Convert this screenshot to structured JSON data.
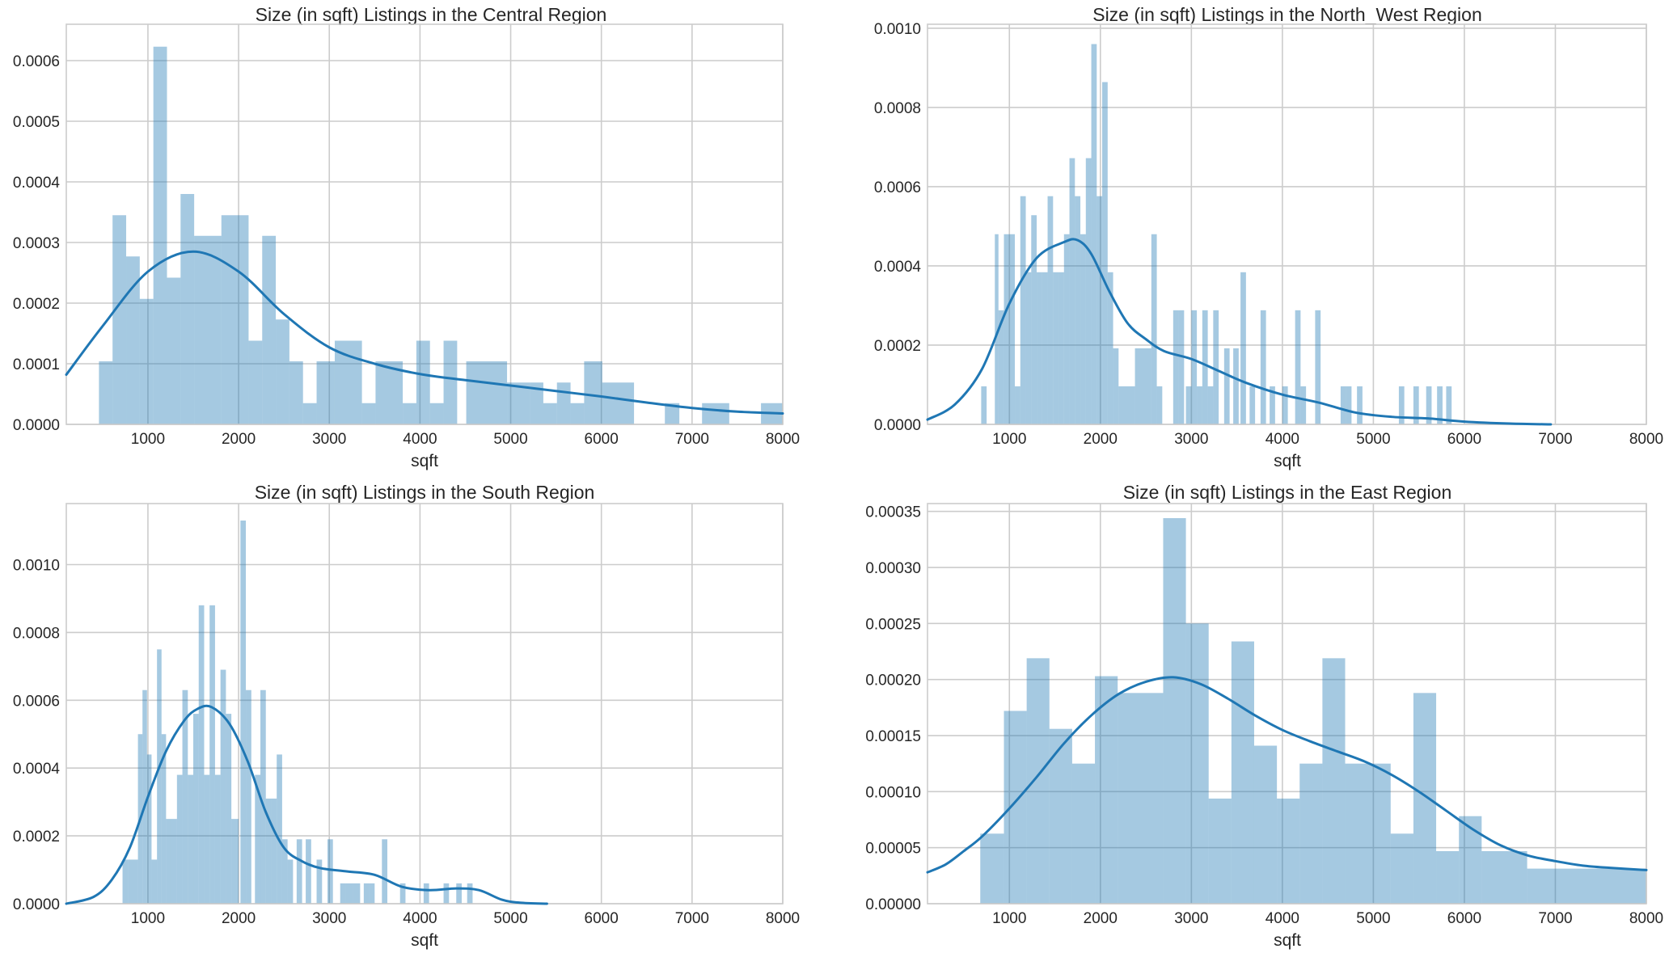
{
  "chart_data": [
    {
      "type": "bar",
      "title": "Size (in sqft) Listings in the Central Region",
      "xlabel": "sqft",
      "xlim": [
        100,
        8000
      ],
      "ylim": [
        0,
        0.00066
      ],
      "xticks": [
        1000,
        2000,
        3000,
        4000,
        5000,
        6000,
        7000,
        8000
      ],
      "xtick_labels": [
        "1000",
        "2000",
        "3000",
        "4000",
        "5000",
        "6000",
        "7000",
        "8000"
      ],
      "yticks": [
        0,
        0.0001,
        0.0002,
        0.0003,
        0.0004,
        0.0005,
        0.0006
      ],
      "ytick_labels": [
        "0.0000",
        "0.0001",
        "0.0002",
        "0.0003",
        "0.0004",
        "0.0005",
        "0.0006"
      ],
      "grid": true,
      "bins": [
        [
          460,
          610,
          0.000104
        ],
        [
          610,
          760,
          0.000345
        ],
        [
          760,
          910,
          0.000277
        ],
        [
          910,
          1060,
          0.000207
        ],
        [
          1060,
          1210,
          0.000623
        ],
        [
          1210,
          1360,
          0.000242
        ],
        [
          1360,
          1510,
          0.00038
        ],
        [
          1510,
          1810,
          0.000311
        ],
        [
          1810,
          2110,
          0.000345
        ],
        [
          2110,
          2260,
          0.000138
        ],
        [
          2260,
          2410,
          0.000311
        ],
        [
          2410,
          2560,
          0.000173
        ],
        [
          2560,
          2710,
          0.000104
        ],
        [
          2710,
          2860,
          3.5e-05
        ],
        [
          2860,
          3060,
          0.000104
        ],
        [
          3060,
          3360,
          0.000138
        ],
        [
          3360,
          3510,
          3.5e-05
        ],
        [
          3510,
          3810,
          0.000104
        ],
        [
          3810,
          3960,
          3.5e-05
        ],
        [
          3960,
          4110,
          0.000138
        ],
        [
          4110,
          4260,
          3.5e-05
        ],
        [
          4260,
          4410,
          0.000138
        ],
        [
          4410,
          4510,
          0.0
        ],
        [
          4510,
          4960,
          0.000104
        ],
        [
          4960,
          5210,
          6.9e-05
        ],
        [
          5210,
          5360,
          6.9e-05
        ],
        [
          5360,
          5510,
          3.5e-05
        ],
        [
          5510,
          5660,
          6.9e-05
        ],
        [
          5660,
          5810,
          3.5e-05
        ],
        [
          5810,
          6010,
          0.000104
        ],
        [
          6010,
          6360,
          6.9e-05
        ],
        [
          6700,
          6860,
          3.5e-05
        ],
        [
          7110,
          7410,
          3.5e-05
        ],
        [
          7760,
          8000,
          3.5e-05
        ]
      ],
      "kde": [
        [
          100,
          8.2e-05
        ],
        [
          500,
          0.000162
        ],
        [
          1000,
          0.000252
        ],
        [
          1500,
          0.000285
        ],
        [
          2000,
          0.000252
        ],
        [
          2500,
          0.000182
        ],
        [
          3000,
          0.000127
        ],
        [
          3500,
          0.0001
        ],
        [
          4000,
          8.3e-05
        ],
        [
          4500,
          7.3e-05
        ],
        [
          5000,
          6.4e-05
        ],
        [
          5500,
          5.5e-05
        ],
        [
          6000,
          4.6e-05
        ],
        [
          6500,
          3.6e-05
        ],
        [
          7000,
          2.7e-05
        ],
        [
          7500,
          2.1e-05
        ],
        [
          8000,
          1.8e-05
        ]
      ]
    },
    {
      "type": "bar",
      "title": "Size (in sqft) Listings in the North_West Region",
      "xlabel": "sqft",
      "xlim": [
        100,
        8000
      ],
      "ylim": [
        0,
        0.00101
      ],
      "xticks": [
        1000,
        2000,
        3000,
        4000,
        5000,
        6000,
        7000,
        8000
      ],
      "xtick_labels": [
        "1000",
        "2000",
        "3000",
        "4000",
        "5000",
        "6000",
        "7000",
        "8000"
      ],
      "yticks": [
        0,
        0.0002,
        0.0004,
        0.0006,
        0.0008,
        0.001
      ],
      "ytick_labels": [
        "0.0000",
        "0.0002",
        "0.0004",
        "0.0006",
        "0.0008",
        "0.0010"
      ],
      "grid": true,
      "bins": [
        [
          690,
          750,
          9.6e-05
        ],
        [
          840,
          880,
          0.00048
        ],
        [
          880,
          940,
          0.000288
        ],
        [
          940,
          1000,
          0.00048
        ],
        [
          1000,
          1060,
          0.00048
        ],
        [
          1060,
          1120,
          9.6e-05
        ],
        [
          1120,
          1180,
          0.000576
        ],
        [
          1180,
          1240,
          0.000384
        ],
        [
          1240,
          1300,
          0.000528
        ],
        [
          1300,
          1360,
          0.000384
        ],
        [
          1360,
          1420,
          0.000384
        ],
        [
          1420,
          1480,
          0.000576
        ],
        [
          1480,
          1540,
          0.000384
        ],
        [
          1540,
          1600,
          0.000384
        ],
        [
          1600,
          1660,
          0.00048
        ],
        [
          1660,
          1720,
          0.000672
        ],
        [
          1720,
          1780,
          0.000576
        ],
        [
          1780,
          1840,
          0.00048
        ],
        [
          1840,
          1900,
          0.000672
        ],
        [
          1900,
          1960,
          0.00096
        ],
        [
          1960,
          2020,
          0.000576
        ],
        [
          2020,
          2080,
          0.000864
        ],
        [
          2080,
          2140,
          0.000384
        ],
        [
          2140,
          2200,
          0.000192
        ],
        [
          2200,
          2380,
          9.6e-05
        ],
        [
          2380,
          2560,
          0.000192
        ],
        [
          2560,
          2620,
          0.00048
        ],
        [
          2620,
          2680,
          9.6e-05
        ],
        [
          2800,
          2860,
          0.000288
        ],
        [
          2860,
          2920,
          0.000288
        ],
        [
          2940,
          3000,
          9.6e-05
        ],
        [
          3000,
          3060,
          0.000288
        ],
        [
          3060,
          3120,
          9.6e-05
        ],
        [
          3120,
          3180,
          0.000288
        ],
        [
          3180,
          3240,
          9.6e-05
        ],
        [
          3240,
          3300,
          0.000288
        ],
        [
          3360,
          3420,
          0.000192
        ],
        [
          3460,
          3520,
          0.000192
        ],
        [
          3540,
          3600,
          0.000384
        ],
        [
          3640,
          3700,
          9.6e-05
        ],
        [
          3760,
          3820,
          0.000288
        ],
        [
          3860,
          3920,
          9.6e-05
        ],
        [
          4000,
          4060,
          9.6e-05
        ],
        [
          4140,
          4200,
          0.000288
        ],
        [
          4200,
          4260,
          9.6e-05
        ],
        [
          4360,
          4420,
          0.000288
        ],
        [
          4640,
          4700,
          9.6e-05
        ],
        [
          4700,
          4760,
          9.6e-05
        ],
        [
          4820,
          4880,
          9.6e-05
        ],
        [
          5280,
          5340,
          9.6e-05
        ],
        [
          5440,
          5500,
          9.6e-05
        ],
        [
          5580,
          5640,
          9.6e-05
        ],
        [
          5700,
          5760,
          9.6e-05
        ],
        [
          5800,
          5860,
          9.6e-05
        ]
      ],
      "kde": [
        [
          100,
          1.2e-05
        ],
        [
          400,
          5e-05
        ],
        [
          700,
          0.00014
        ],
        [
          1000,
          0.000305
        ],
        [
          1300,
          0.00042
        ],
        [
          1600,
          0.00046
        ],
        [
          1750,
          0.000465
        ],
        [
          1900,
          0.00043
        ],
        [
          2100,
          0.000335
        ],
        [
          2300,
          0.000255
        ],
        [
          2500,
          0.000215
        ],
        [
          2700,
          0.000185
        ],
        [
          3000,
          0.000165
        ],
        [
          3300,
          0.000135
        ],
        [
          3600,
          0.000105
        ],
        [
          4000,
          7.5e-05
        ],
        [
          4400,
          5.5e-05
        ],
        [
          4800,
          3e-05
        ],
        [
          5200,
          1.9e-05
        ],
        [
          5600,
          1.5e-05
        ],
        [
          6000,
          7e-06
        ],
        [
          6500,
          2e-06
        ],
        [
          6950,
          0.0
        ]
      ]
    },
    {
      "type": "bar",
      "title": "Size (in sqft) Listings in the South Region",
      "xlabel": "sqft",
      "xlim": [
        100,
        8000
      ],
      "ylim": [
        0,
        0.00118
      ],
      "xticks": [
        1000,
        2000,
        3000,
        4000,
        5000,
        6000,
        7000,
        8000
      ],
      "xtick_labels": [
        "1000",
        "2000",
        "3000",
        "4000",
        "5000",
        "6000",
        "7000",
        "8000"
      ],
      "yticks": [
        0,
        0.0002,
        0.0004,
        0.0006,
        0.0008,
        0.001
      ],
      "ytick_labels": [
        "0.0000",
        "0.0002",
        "0.0004",
        "0.0006",
        "0.0008",
        "0.0010"
      ],
      "grid": true,
      "bins": [
        [
          720,
          780,
          0.00013
        ],
        [
          780,
          840,
          0.00013
        ],
        [
          840,
          890,
          0.00013
        ],
        [
          890,
          940,
          0.0005
        ],
        [
          940,
          990,
          0.00063
        ],
        [
          990,
          1040,
          0.00044
        ],
        [
          1040,
          1100,
          0.00013
        ],
        [
          1100,
          1150,
          0.00075
        ],
        [
          1150,
          1200,
          0.0005
        ],
        [
          1200,
          1250,
          0.00025
        ],
        [
          1250,
          1320,
          0.00025
        ],
        [
          1320,
          1380,
          0.00038
        ],
        [
          1380,
          1440,
          0.00063
        ],
        [
          1440,
          1500,
          0.00038
        ],
        [
          1500,
          1560,
          0.00056
        ],
        [
          1560,
          1620,
          0.00088
        ],
        [
          1620,
          1680,
          0.00038
        ],
        [
          1680,
          1740,
          0.00088
        ],
        [
          1740,
          1800,
          0.00038
        ],
        [
          1800,
          1860,
          0.00069
        ],
        [
          1860,
          1920,
          0.00056
        ],
        [
          1920,
          2000,
          0.00025
        ],
        [
          2020,
          2080,
          0.00113
        ],
        [
          2080,
          2140,
          0.00063
        ],
        [
          2180,
          2240,
          0.00038
        ],
        [
          2240,
          2300,
          0.00063
        ],
        [
          2300,
          2360,
          0.00031
        ],
        [
          2360,
          2420,
          0.00031
        ],
        [
          2420,
          2480,
          0.00044
        ],
        [
          2480,
          2540,
          0.00019
        ],
        [
          2540,
          2600,
          0.00013
        ],
        [
          2640,
          2700,
          0.00019
        ],
        [
          2740,
          2800,
          0.00019
        ],
        [
          2860,
          2920,
          0.00013
        ],
        [
          2980,
          3040,
          0.00019
        ],
        [
          3120,
          3180,
          6e-05
        ],
        [
          3180,
          3260,
          6e-05
        ],
        [
          3260,
          3340,
          6e-05
        ],
        [
          3380,
          3440,
          6e-05
        ],
        [
          3440,
          3500,
          6e-05
        ],
        [
          3580,
          3640,
          0.00019
        ],
        [
          3780,
          3840,
          6e-05
        ],
        [
          4040,
          4100,
          6e-05
        ],
        [
          4260,
          4320,
          6e-05
        ],
        [
          4400,
          4460,
          6e-05
        ],
        [
          4520,
          4580,
          6e-05
        ]
      ],
      "kde": [
        [
          100,
          0.0
        ],
        [
          400,
          2e-05
        ],
        [
          600,
          7e-05
        ],
        [
          800,
          0.000165
        ],
        [
          1000,
          0.000315
        ],
        [
          1200,
          0.00045
        ],
        [
          1400,
          0.00054
        ],
        [
          1550,
          0.000575
        ],
        [
          1700,
          0.00058
        ],
        [
          1900,
          0.00053
        ],
        [
          2100,
          0.00042
        ],
        [
          2300,
          0.00027
        ],
        [
          2500,
          0.000165
        ],
        [
          2700,
          0.000125
        ],
        [
          2900,
          0.000105
        ],
        [
          3200,
          9.5e-05
        ],
        [
          3500,
          8.5e-05
        ],
        [
          3800,
          5e-05
        ],
        [
          4100,
          4e-05
        ],
        [
          4400,
          4.5e-05
        ],
        [
          4650,
          4e-05
        ],
        [
          4900,
          1.2e-05
        ],
        [
          5100,
          3e-06
        ],
        [
          5400,
          0.0
        ]
      ]
    },
    {
      "type": "bar",
      "title": "Size (in sqft) Listings in the East Region",
      "xlabel": "sqft",
      "xlim": [
        100,
        8000
      ],
      "ylim": [
        0,
        0.000357
      ],
      "xticks": [
        1000,
        2000,
        3000,
        4000,
        5000,
        6000,
        7000,
        8000
      ],
      "xtick_labels": [
        "1000",
        "2000",
        "3000",
        "4000",
        "5000",
        "6000",
        "7000",
        "8000"
      ],
      "yticks": [
        0,
        5e-05,
        0.0001,
        0.00015,
        0.0002,
        0.00025,
        0.0003,
        0.00035
      ],
      "ytick_labels": [
        "0.00000",
        "0.00005",
        "0.00010",
        "0.00015",
        "0.00020",
        "0.00025",
        "0.00030",
        "0.00035"
      ],
      "grid": true,
      "bins": [
        [
          680,
          940,
          6.25e-05
        ],
        [
          940,
          1190,
          0.000172
        ],
        [
          1190,
          1440,
          0.000219
        ],
        [
          1440,
          1690,
          0.000156
        ],
        [
          1690,
          1940,
          0.000125
        ],
        [
          1940,
          2190,
          0.000203
        ],
        [
          2190,
          2690,
          0.000188
        ],
        [
          2690,
          2940,
          0.000344
        ],
        [
          2940,
          3190,
          0.00025
        ],
        [
          3190,
          3440,
          9.38e-05
        ],
        [
          3440,
          3690,
          0.000234
        ],
        [
          3690,
          3940,
          0.000141
        ],
        [
          3940,
          4190,
          9.38e-05
        ],
        [
          4190,
          4440,
          0.000125
        ],
        [
          4440,
          4690,
          0.000219
        ],
        [
          4690,
          5190,
          0.000125
        ],
        [
          5190,
          5440,
          6.25e-05
        ],
        [
          5440,
          5690,
          0.000188
        ],
        [
          5690,
          5940,
          4.69e-05
        ],
        [
          5940,
          6190,
          7.81e-05
        ],
        [
          6190,
          6690,
          4.69e-05
        ],
        [
          6690,
          8000,
          3.13e-05
        ]
      ],
      "kde": [
        [
          100,
          2.8e-05
        ],
        [
          300,
          3.5e-05
        ],
        [
          500,
          4.7e-05
        ],
        [
          700,
          6e-05
        ],
        [
          1000,
          8.5e-05
        ],
        [
          1300,
          0.000113
        ],
        [
          1600,
          0.000143
        ],
        [
          1900,
          0.000168
        ],
        [
          2200,
          0.000187
        ],
        [
          2500,
          0.000198
        ],
        [
          2800,
          0.000202
        ],
        [
          3100,
          0.000196
        ],
        [
          3400,
          0.000183
        ],
        [
          3700,
          0.000168
        ],
        [
          4000,
          0.000155
        ],
        [
          4300,
          0.000145
        ],
        [
          4600,
          0.000136
        ],
        [
          4900,
          0.000127
        ],
        [
          5200,
          0.000115
        ],
        [
          5500,
          0.0001
        ],
        [
          5800,
          8.3e-05
        ],
        [
          6100,
          6.6e-05
        ],
        [
          6400,
          5.2e-05
        ],
        [
          6700,
          4.3e-05
        ],
        [
          7000,
          3.8e-05
        ],
        [
          7300,
          3.4e-05
        ],
        [
          7600,
          3.2e-05
        ],
        [
          8000,
          3e-05
        ]
      ]
    }
  ]
}
